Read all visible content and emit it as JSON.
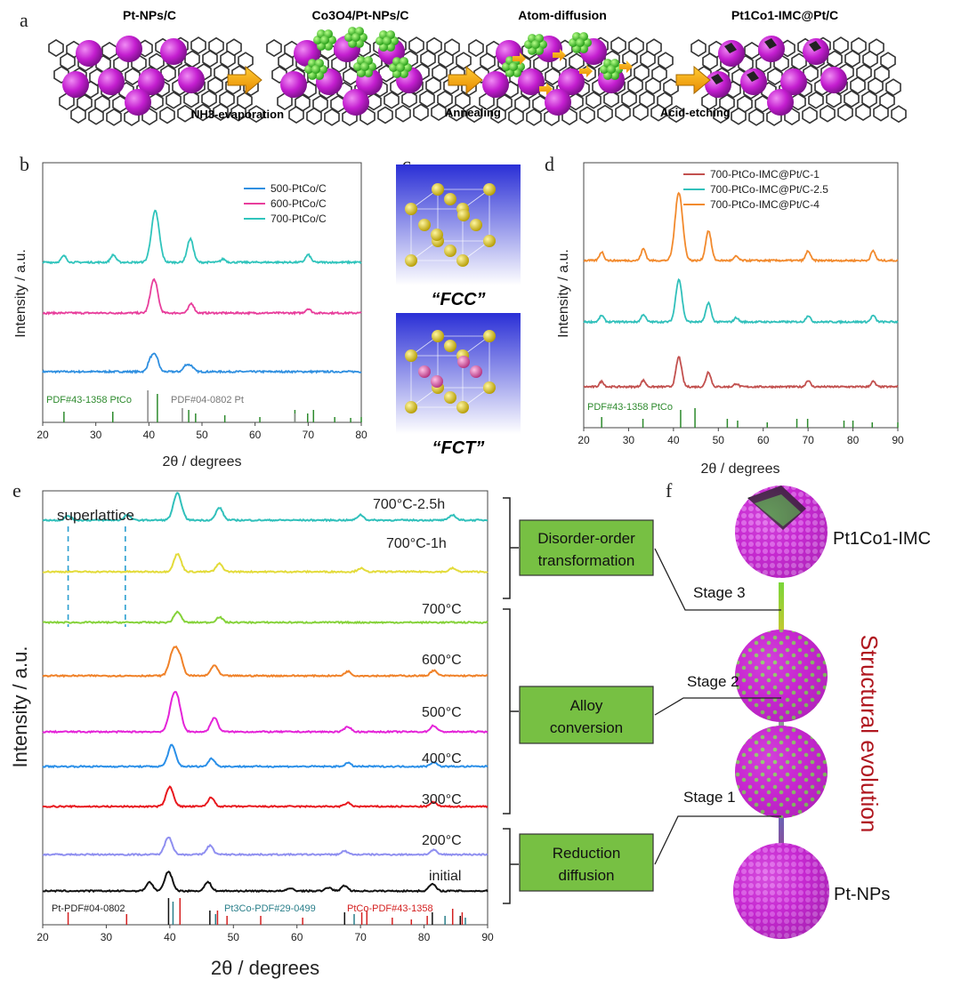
{
  "panel_a": {
    "label": "a",
    "stages": [
      "Pt-NPs/C",
      "Co3O4/Pt-NPs/C",
      "Atom-diffusion",
      "Pt1Co1-IMC@Pt/C"
    ],
    "steps": [
      "NH3-evaporation",
      "Annealing",
      "Acid-etching"
    ]
  },
  "panel_b": {
    "label": "b",
    "ylabel": "Intensity / a.u.",
    "xlabel": "2θ / degrees",
    "xticks": [
      "20",
      "30",
      "40",
      "50",
      "60",
      "70",
      "80"
    ],
    "legend": [
      "500-PtCo/C",
      "600-PtCo/C",
      "700-PtCo/C"
    ],
    "ref_labels": [
      "PDF#43-1358 PtCo",
      "PDF#04-0802 Pt"
    ]
  },
  "panel_c": {
    "label": "c",
    "captions": [
      "“FCC”",
      "“FCT”"
    ]
  },
  "panel_d": {
    "label": "d",
    "ylabel": "Intensity / a.u.",
    "xlabel": "2θ / degrees",
    "xticks": [
      "20",
      "30",
      "40",
      "50",
      "60",
      "70",
      "80",
      "90"
    ],
    "legend": [
      "700-PtCo-IMC@Pt/C-1",
      "700-PtCo-IMC@Pt/C-2.5",
      "700-PtCo-IMC@Pt/C-4"
    ],
    "ref_label": "PDF#43-1358 PtCo"
  },
  "panel_e": {
    "label": "e",
    "ylabel": "Intensity / a.u.",
    "xlabel": "2θ / degrees",
    "xticks": [
      "20",
      "30",
      "40",
      "50",
      "60",
      "70",
      "80",
      "90"
    ],
    "annotation": "superlattice",
    "curve_labels": [
      "700°C-2.5h",
      "700°C-1h",
      "700°C",
      "600°C",
      "500°C",
      "400°C",
      "300°C",
      "200°C",
      "initial"
    ],
    "ref_labels": [
      "Pt-PDF#04-0802",
      "Pt3Co-PDF#29-0499",
      "PtCo-PDF#43-1358"
    ],
    "boxes": [
      [
        "Disorder-order",
        "transformation"
      ],
      [
        "Alloy",
        "conversion"
      ],
      [
        "Reduction",
        "diffusion"
      ]
    ]
  },
  "panel_f": {
    "label": "f",
    "top_label": "Pt1Co1-IMC",
    "bottom_label": "Pt-NPs",
    "stages": [
      "Stage 3",
      "Stage 2",
      "Stage 1"
    ],
    "side_text": "Structural evolution"
  },
  "colors": {
    "b": [
      "#2f8fe0",
      "#e83e9c",
      "#30c4bc"
    ],
    "d": [
      "#c2504e",
      "#31c0bb",
      "#f28a2d"
    ],
    "e": [
      "#31c0bb",
      "#e3db3a",
      "#85d23a",
      "#f08229",
      "#e424d8",
      "#2a8fe8",
      "#e8181e",
      "#8f8ff0",
      "#111111"
    ]
  },
  "chart_data": [
    {
      "panel": "b",
      "type": "line",
      "xlim": [
        20,
        80
      ],
      "xlabel": "2θ / degrees",
      "ylabel": "Intensity / a.u.",
      "legend_position": "top-right",
      "series": [
        {
          "name": "500-PtCo/C",
          "peaks": [
            [
              40.3,
              0.55
            ],
            [
              41.3,
              0.7
            ],
            [
              47.0,
              0.3
            ],
            [
              48.0,
              0.25
            ]
          ]
        },
        {
          "name": "600-PtCo/C",
          "peaks": [
            [
              40.6,
              0.9
            ],
            [
              41.3,
              1.0
            ],
            [
              48.0,
              0.45
            ],
            [
              70.0,
              0.2
            ]
          ]
        },
        {
          "name": "700-PtCo/C",
          "peaks": [
            [
              24.0,
              0.3
            ],
            [
              33.3,
              0.35
            ],
            [
              41.2,
              2.4
            ],
            [
              47.8,
              1.1
            ],
            [
              54.0,
              0.15
            ],
            [
              70.0,
              0.35
            ]
          ]
        }
      ],
      "reference_lines": {
        "PtCo": [
          24.0,
          33.2,
          41.6,
          47.5,
          48.8,
          54.3,
          60.9,
          67.5,
          69.9,
          71.0,
          75.0,
          78.0,
          80.0
        ],
        "Pt": [
          39.8,
          46.3,
          67.5
        ]
      }
    },
    {
      "panel": "d",
      "type": "line",
      "xlim": [
        20,
        90
      ],
      "xlabel": "2θ / degrees",
      "ylabel": "Intensity / a.u.",
      "legend_position": "top-right",
      "series": [
        {
          "name": "700-PtCo-IMC@Pt/C-1",
          "peaks": [
            [
              24.0,
              0.25
            ],
            [
              33.3,
              0.3
            ],
            [
              41.2,
              1.4
            ],
            [
              47.8,
              0.7
            ],
            [
              54.0,
              0.15
            ],
            [
              70.0,
              0.3
            ],
            [
              84.5,
              0.25
            ]
          ]
        },
        {
          "name": "700-PtCo-IMC@Pt/C-2.5",
          "peaks": [
            [
              24.0,
              0.3
            ],
            [
              33.3,
              0.35
            ],
            [
              41.2,
              2.0
            ],
            [
              47.8,
              0.9
            ],
            [
              54.0,
              0.2
            ],
            [
              70.0,
              0.3
            ],
            [
              84.5,
              0.3
            ]
          ]
        },
        {
          "name": "700-PtCo-IMC@Pt/C-4",
          "peaks": [
            [
              24.0,
              0.4
            ],
            [
              33.3,
              0.55
            ],
            [
              41.2,
              3.2
            ],
            [
              47.8,
              1.4
            ],
            [
              54.0,
              0.2
            ],
            [
              70.0,
              0.45
            ],
            [
              84.5,
              0.45
            ]
          ]
        }
      ],
      "reference_lines": {
        "PtCo": [
          24.0,
          33.2,
          41.6,
          44.8,
          52.0,
          54.3,
          60.9,
          67.5,
          69.9,
          78.0,
          80.0,
          84.3,
          90.0
        ]
      }
    },
    {
      "panel": "e",
      "type": "line",
      "xlim": [
        20,
        90
      ],
      "xlabel": "2θ / degrees",
      "ylabel": "Intensity / a.u.",
      "series": [
        {
          "name": "700°C-2.5h",
          "peaks": [
            [
              24.0,
              0.25
            ],
            [
              33.3,
              0.3
            ],
            [
              41.2,
              1.5
            ],
            [
              47.8,
              0.7
            ],
            [
              70.0,
              0.3
            ],
            [
              84.5,
              0.3
            ]
          ]
        },
        {
          "name": "700°C-1h",
          "peaks": [
            [
              41.2,
              1.0
            ],
            [
              47.8,
              0.45
            ],
            [
              70.0,
              0.2
            ],
            [
              84.5,
              0.2
            ]
          ]
        },
        {
          "name": "700°C",
          "peaks": [
            [
              41.2,
              0.6
            ],
            [
              47.8,
              0.3
            ]
          ]
        },
        {
          "name": "600°C",
          "peaks": [
            [
              40.5,
              1.3
            ],
            [
              41.5,
              1.0
            ],
            [
              47.0,
              0.6
            ],
            [
              68.0,
              0.25
            ],
            [
              81.5,
              0.3
            ]
          ]
        },
        {
          "name": "500°C",
          "peaks": [
            [
              40.5,
              1.6
            ],
            [
              41.3,
              1.2
            ],
            [
              47.0,
              0.8
            ],
            [
              68.0,
              0.3
            ],
            [
              81.5,
              0.35
            ]
          ]
        },
        {
          "name": "400°C",
          "peaks": [
            [
              40.3,
              1.2
            ],
            [
              46.6,
              0.45
            ],
            [
              68.0,
              0.2
            ],
            [
              81.5,
              0.25
            ]
          ]
        },
        {
          "name": "300°C",
          "peaks": [
            [
              40.0,
              1.1
            ],
            [
              46.5,
              0.5
            ],
            [
              68.0,
              0.2
            ],
            [
              81.5,
              0.25
            ]
          ]
        },
        {
          "name": "200°C",
          "peaks": [
            [
              39.8,
              1.0
            ],
            [
              46.3,
              0.5
            ],
            [
              67.5,
              0.2
            ],
            [
              81.5,
              0.25
            ]
          ]
        },
        {
          "name": "initial",
          "peaks": [
            [
              36.8,
              0.5
            ],
            [
              39.8,
              1.1
            ],
            [
              46.0,
              0.5
            ],
            [
              59.0,
              0.15
            ],
            [
              65.0,
              0.2
            ],
            [
              67.5,
              0.3
            ],
            [
              81.3,
              0.4
            ]
          ]
        }
      ],
      "superlattice_lines": [
        24.0,
        33.0
      ],
      "reference_lines": {
        "Pt": [
          39.8,
          46.3,
          67.5,
          81.3,
          85.7
        ],
        "Pt3Co": [
          40.5,
          47.2,
          69.0,
          83.3,
          86.5
        ],
        "PtCo": [
          24.0,
          33.2,
          41.6,
          47.5,
          49.0,
          54.3,
          60.9,
          70.2,
          71.0,
          75.0,
          78.0,
          80.5,
          84.5,
          86.0
        ]
      }
    }
  ]
}
